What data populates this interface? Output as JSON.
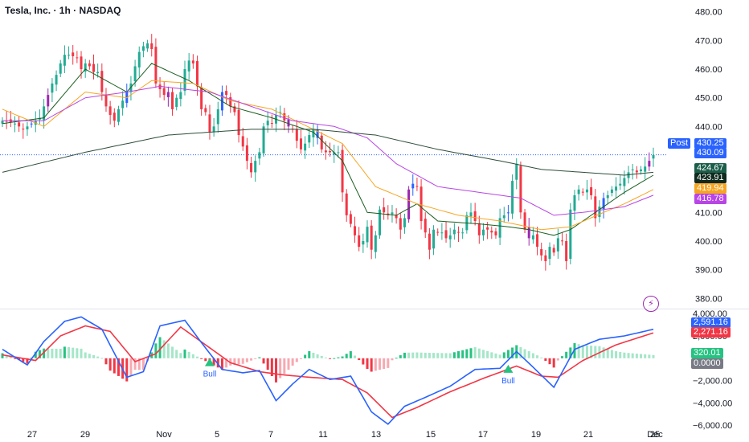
{
  "header": {
    "title": "Tesla, Inc. · 1h · NASDAQ"
  },
  "colors": {
    "up": "#22ab94",
    "down": "#f23645",
    "blue_candle": "#2962ff",
    "purple_candle": "#9c27b0",
    "ma_fast": "#1b5e20",
    "ma_mid": "#f6a623",
    "ma_slow": "#b845e6",
    "ma_long": "#2e4d3a",
    "macd": "#2962ff",
    "signal": "#f23645",
    "hist_up": "#26c281",
    "hist_up_light": "#a5e6c8",
    "hist_down": "#f23645",
    "hist_down_light": "#f7a9b1"
  },
  "price_tags": [
    {
      "label": "430.25",
      "bg": "#2962ff",
      "name": "post-price-tag"
    },
    {
      "label": "430.09",
      "bg": "#2962ff",
      "name": "last-price-tag"
    },
    {
      "label": "424.67",
      "bg": "#1b5e4a",
      "name": "ma-fast-tag"
    },
    {
      "label": "423.91",
      "bg": "#0f2a1e",
      "name": "ma-long-tag"
    },
    {
      "label": "419.94",
      "bg": "#f6a623",
      "name": "ma-mid-tag"
    },
    {
      "label": "416.78",
      "bg": "#b845e6",
      "name": "ma-slow-tag"
    }
  ],
  "post_label": "Post",
  "indicator_tags": [
    {
      "label": "2,591.16",
      "bg": "#2962ff",
      "name": "macd-value-tag"
    },
    {
      "label": "2,271.16",
      "bg": "#f23645",
      "name": "signal-value-tag"
    },
    {
      "label": "320.01",
      "bg": "#26c281",
      "name": "histogram-value-tag"
    },
    {
      "label": "0.0000",
      "bg": "#787b86",
      "name": "zero-value-tag"
    }
  ],
  "chart_data": {
    "type": "candlestick",
    "title": "Tesla, Inc. · 1h · NASDAQ",
    "price_axis": {
      "ticks": [
        "480.00",
        "470.00",
        "460.00",
        "450.00",
        "440.00",
        "430.00",
        "420.00",
        "410.00",
        "400.00",
        "390.00",
        "380.00"
      ],
      "range": [
        377,
        483
      ]
    },
    "time_axis": [
      "27",
      "29",
      "Nov",
      "5",
      "7",
      "11",
      "13",
      "15",
      "17",
      "19",
      "21",
      "25",
      "Dec"
    ],
    "last_price": 430.09,
    "candle_close_path": [
      [
        0,
        442
      ],
      [
        3,
        441
      ],
      [
        5,
        439
      ],
      [
        7,
        441
      ],
      [
        9,
        443
      ],
      [
        11,
        451
      ],
      [
        12,
        455
      ],
      [
        13,
        458
      ],
      [
        14,
        462
      ],
      [
        15,
        465
      ],
      [
        16,
        465
      ],
      [
        18,
        464
      ],
      [
        19,
        460
      ],
      [
        20,
        462
      ],
      [
        21,
        461
      ],
      [
        22,
        459
      ],
      [
        23,
        459
      ],
      [
        24,
        452
      ],
      [
        25,
        447
      ],
      [
        26,
        444
      ],
      [
        27,
        442
      ],
      [
        28,
        446
      ],
      [
        29,
        449
      ],
      [
        30,
        452
      ],
      [
        31,
        455
      ],
      [
        32,
        461
      ],
      [
        33,
        466
      ],
      [
        34,
        468
      ],
      [
        35,
        469
      ],
      [
        36,
        467
      ],
      [
        37,
        455
      ],
      [
        38,
        453
      ],
      [
        39,
        451
      ],
      [
        40,
        452
      ],
      [
        41,
        446
      ],
      [
        42,
        450
      ],
      [
        43,
        452
      ],
      [
        44,
        460
      ],
      [
        45,
        463
      ],
      [
        46,
        462
      ],
      [
        47,
        454
      ],
      [
        48,
        446
      ],
      [
        49,
        445
      ],
      [
        50,
        438
      ],
      [
        51,
        440
      ],
      [
        52,
        446
      ],
      [
        53,
        452
      ],
      [
        54,
        451
      ],
      [
        55,
        447
      ],
      [
        56,
        445
      ],
      [
        57,
        437
      ],
      [
        58,
        433
      ],
      [
        59,
        428
      ],
      [
        60,
        424
      ],
      [
        61,
        428
      ],
      [
        62,
        431
      ],
      [
        63,
        440
      ],
      [
        64,
        442
      ],
      [
        65,
        441
      ],
      [
        66,
        444
      ],
      [
        67,
        445
      ],
      [
        68,
        442
      ],
      [
        69,
        440
      ],
      [
        70,
        439
      ],
      [
        71,
        435
      ],
      [
        72,
        432
      ],
      [
        73,
        434
      ],
      [
        74,
        437
      ],
      [
        75,
        439
      ],
      [
        76,
        436
      ],
      [
        77,
        432
      ],
      [
        78,
        431
      ],
      [
        79,
        431
      ],
      [
        80,
        431
      ],
      [
        81,
        431
      ],
      [
        82,
        417
      ],
      [
        83,
        409
      ],
      [
        84,
        406
      ],
      [
        85,
        402
      ],
      [
        86,
        398
      ],
      [
        87,
        400
      ],
      [
        88,
        405
      ],
      [
        89,
        397
      ],
      [
        90,
        402
      ],
      [
        91,
        411
      ],
      [
        92,
        410
      ],
      [
        93,
        409
      ],
      [
        94,
        410
      ],
      [
        95,
        408
      ],
      [
        96,
        404
      ],
      [
        97,
        408
      ],
      [
        98,
        418
      ],
      [
        99,
        420
      ],
      [
        100,
        419
      ],
      [
        101,
        407
      ],
      [
        102,
        403
      ],
      [
        103,
        397
      ],
      [
        104,
        404
      ],
      [
        105,
        403
      ],
      [
        106,
        403
      ],
      [
        107,
        401
      ],
      [
        108,
        402
      ],
      [
        109,
        404
      ],
      [
        110,
        403
      ],
      [
        111,
        403
      ],
      [
        112,
        409
      ],
      [
        113,
        410
      ],
      [
        114,
        407
      ],
      [
        115,
        402
      ],
      [
        116,
        404
      ],
      [
        117,
        404
      ],
      [
        118,
        403
      ],
      [
        119,
        402
      ],
      [
        120,
        408
      ],
      [
        121,
        409
      ],
      [
        122,
        410
      ],
      [
        123,
        421
      ],
      [
        124,
        427
      ],
      [
        125,
        410
      ],
      [
        126,
        404
      ],
      [
        127,
        401
      ],
      [
        128,
        402
      ],
      [
        129,
        398
      ],
      [
        130,
        395
      ],
      [
        131,
        393
      ],
      [
        132,
        398
      ],
      [
        133,
        396
      ],
      [
        134,
        401
      ],
      [
        135,
        400
      ],
      [
        136,
        393
      ],
      [
        137,
        411
      ],
      [
        138,
        416
      ],
      [
        139,
        418
      ],
      [
        140,
        417
      ],
      [
        141,
        418
      ],
      [
        142,
        416
      ],
      [
        143,
        408
      ],
      [
        144,
        412
      ],
      [
        145,
        415
      ],
      [
        146,
        416
      ],
      [
        147,
        418
      ],
      [
        148,
        419
      ],
      [
        149,
        420
      ],
      [
        150,
        422
      ],
      [
        151,
        424
      ],
      [
        152,
        425
      ],
      [
        153,
        424
      ],
      [
        154,
        425
      ],
      [
        155,
        426
      ],
      [
        156,
        428
      ],
      [
        157,
        430
      ]
    ],
    "moving_averages": [
      {
        "name": "ma_fast",
        "value": 424.67,
        "path": [
          [
            0,
            441
          ],
          [
            10,
            443
          ],
          [
            20,
            460
          ],
          [
            30,
            452
          ],
          [
            36,
            462
          ],
          [
            45,
            456
          ],
          [
            55,
            447
          ],
          [
            65,
            443
          ],
          [
            75,
            438
          ],
          [
            82,
            428
          ],
          [
            88,
            410
          ],
          [
            95,
            409
          ],
          [
            100,
            413
          ],
          [
            105,
            407
          ],
          [
            115,
            406
          ],
          [
            122,
            405
          ],
          [
            127,
            404
          ],
          [
            133,
            402
          ],
          [
            137,
            404
          ],
          [
            145,
            412
          ],
          [
            150,
            417
          ],
          [
            157,
            423
          ]
        ]
      },
      {
        "name": "ma_mid",
        "value": 419.94,
        "path": [
          [
            0,
            446
          ],
          [
            10,
            440
          ],
          [
            20,
            452
          ],
          [
            30,
            450
          ],
          [
            36,
            456
          ],
          [
            46,
            455
          ],
          [
            55,
            449
          ],
          [
            65,
            446
          ],
          [
            75,
            439
          ],
          [
            82,
            434
          ],
          [
            90,
            419
          ],
          [
            100,
            413
          ],
          [
            110,
            409
          ],
          [
            120,
            407
          ],
          [
            130,
            404
          ],
          [
            137,
            405
          ],
          [
            145,
            410
          ],
          [
            150,
            413
          ],
          [
            157,
            418
          ]
        ]
      },
      {
        "name": "ma_slow",
        "value": 416.78,
        "path": [
          [
            0,
            442
          ],
          [
            10,
            442
          ],
          [
            20,
            450
          ],
          [
            30,
            452
          ],
          [
            38,
            454
          ],
          [
            50,
            452
          ],
          [
            60,
            447
          ],
          [
            70,
            442
          ],
          [
            80,
            440
          ],
          [
            88,
            436
          ],
          [
            95,
            427
          ],
          [
            105,
            419
          ],
          [
            115,
            417
          ],
          [
            125,
            415
          ],
          [
            133,
            409
          ],
          [
            140,
            410
          ],
          [
            150,
            412
          ],
          [
            157,
            416
          ]
        ]
      },
      {
        "name": "ma_long",
        "value": 423.91,
        "path": [
          [
            0,
            424
          ],
          [
            20,
            431
          ],
          [
            40,
            437
          ],
          [
            60,
            439
          ],
          [
            75,
            439
          ],
          [
            90,
            437
          ],
          [
            105,
            432
          ],
          [
            120,
            428
          ],
          [
            130,
            425
          ],
          [
            140,
            424
          ],
          [
            150,
            423
          ],
          [
            157,
            424
          ]
        ]
      }
    ],
    "indicator": {
      "type": "macd",
      "axis_ticks": [
        "4,000.00",
        "2,000.00",
        "0.0000",
        "−2,000.00",
        "−4,000.00",
        "−6,000.00"
      ],
      "range": [
        -6200,
        4300
      ],
      "macd_path": [
        [
          0,
          800
        ],
        [
          6,
          -600
        ],
        [
          10,
          1500
        ],
        [
          15,
          3300
        ],
        [
          19,
          3700
        ],
        [
          24,
          2600
        ],
        [
          30,
          -1700
        ],
        [
          34,
          -1200
        ],
        [
          38,
          2900
        ],
        [
          44,
          3400
        ],
        [
          48,
          1400
        ],
        [
          53,
          -1000
        ],
        [
          58,
          -1300
        ],
        [
          62,
          -1100
        ],
        [
          66,
          -3800
        ],
        [
          70,
          -2300
        ],
        [
          74,
          -1000
        ],
        [
          79,
          -1900
        ],
        [
          84,
          -1600
        ],
        [
          89,
          -4800
        ],
        [
          93,
          -5900
        ],
        [
          97,
          -4300
        ],
        [
          102,
          -3500
        ],
        [
          108,
          -2500
        ],
        [
          114,
          -1000
        ],
        [
          120,
          -900
        ],
        [
          124,
          600
        ],
        [
          128,
          -800
        ],
        [
          133,
          -2600
        ],
        [
          138,
          800
        ],
        [
          144,
          1700
        ],
        [
          150,
          2000
        ],
        [
          157,
          2590
        ]
      ],
      "signal_path": [
        [
          0,
          300
        ],
        [
          8,
          -200
        ],
        [
          14,
          2000
        ],
        [
          20,
          2900
        ],
        [
          26,
          2400
        ],
        [
          32,
          -300
        ],
        [
          37,
          400
        ],
        [
          43,
          2800
        ],
        [
          49,
          1200
        ],
        [
          55,
          -400
        ],
        [
          62,
          -1200
        ],
        [
          68,
          -1500
        ],
        [
          74,
          -1700
        ],
        [
          82,
          -1900
        ],
        [
          88,
          -3100
        ],
        [
          94,
          -5300
        ],
        [
          100,
          -4400
        ],
        [
          108,
          -3000
        ],
        [
          116,
          -1800
        ],
        [
          124,
          -700
        ],
        [
          130,
          -1600
        ],
        [
          134,
          -1700
        ],
        [
          140,
          -200
        ],
        [
          148,
          1200
        ],
        [
          157,
          2270
        ]
      ],
      "histogram_current": 320.01,
      "markers": [
        {
          "label": "Bull",
          "bar": 50
        },
        {
          "label": "Bull",
          "bar": 122
        }
      ]
    }
  }
}
